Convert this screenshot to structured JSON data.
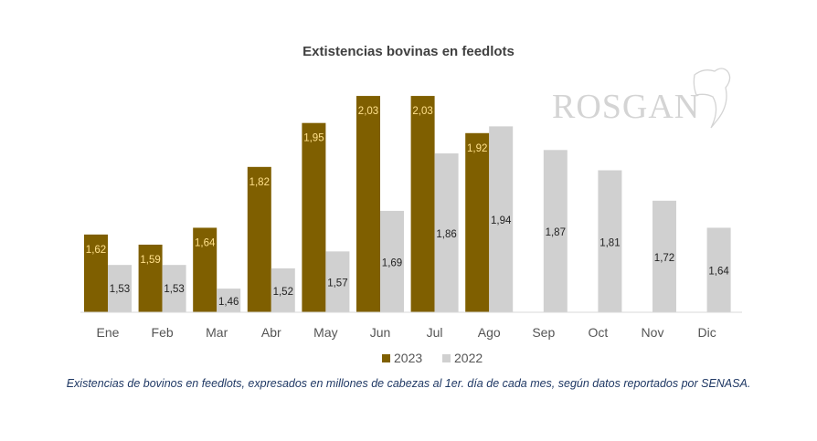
{
  "brand": {
    "logo_text": "ROSGAN"
  },
  "caption": "Existencias de bovinos en feedlots, expresados en millones de cabezas al 1er. día de cada mes, según datos reportados por SENASA.",
  "colors": {
    "s2023": "#7f5f00",
    "s2022": "#d0d0d0",
    "label2023": "#ffe08a",
    "label2022": "#222222"
  },
  "chart_data": {
    "type": "bar",
    "title": "Extistencias bovinas en feedlots",
    "xlabel": "",
    "ylabel": "",
    "ylim": [
      1.39,
      2.1
    ],
    "grid": false,
    "legend": "bottom",
    "categories": [
      "Ene",
      "Feb",
      "Mar",
      "Abr",
      "May",
      "Jun",
      "Jul",
      "Ago",
      "Sep",
      "Oct",
      "Nov",
      "Dic"
    ],
    "series": [
      {
        "name": "2023",
        "values": [
          1.62,
          1.59,
          1.64,
          1.82,
          1.95,
          2.03,
          2.03,
          1.92,
          null,
          null,
          null,
          null
        ],
        "labels": [
          "1,62",
          "1,59",
          "1,64",
          "1,82",
          "1,95",
          "2,03",
          "2,03",
          "1,92",
          "",
          "",
          "",
          ""
        ]
      },
      {
        "name": "2022",
        "values": [
          1.53,
          1.53,
          1.46,
          1.52,
          1.57,
          1.69,
          1.86,
          1.94,
          1.87,
          1.81,
          1.72,
          1.64
        ],
        "labels": [
          "1,53",
          "1,53",
          "1,46",
          "1,52",
          "1,57",
          "1,69",
          "1,86",
          "1,94",
          "1,87",
          "1,81",
          "1,72",
          "1,64"
        ]
      }
    ]
  }
}
